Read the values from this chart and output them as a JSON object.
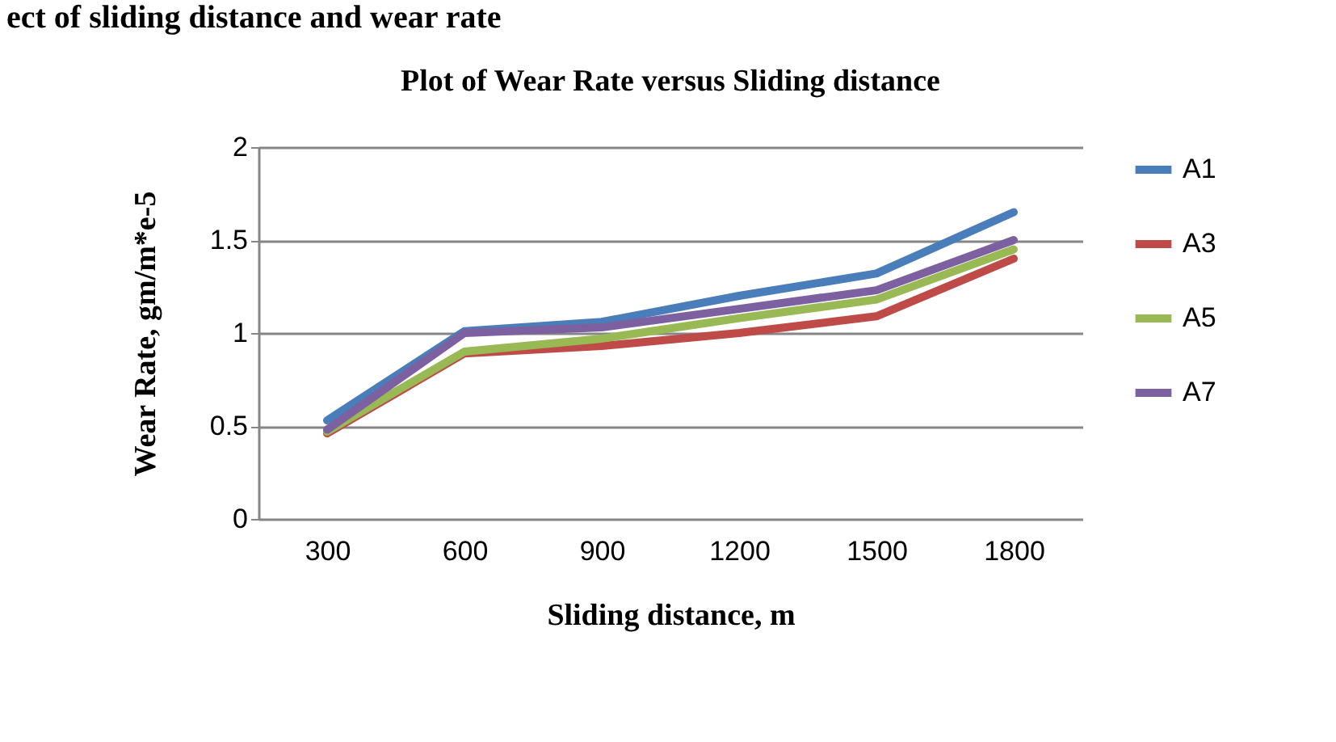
{
  "chart_data": {
    "type": "line",
    "title": "Plot of Wear Rate versus Sliding distance",
    "xlabel": "Sliding distance, m",
    "ylabel": "Wear Rate, gm/m*e-5",
    "annotations": [
      "ect of sliding distance and wear rate"
    ],
    "categories": [
      "300",
      "600",
      "900",
      "1200",
      "1500",
      "1800"
    ],
    "series": [
      {
        "name": "A1",
        "color": "#4a7ebb",
        "values": [
          0.53,
          1.01,
          1.06,
          1.2,
          1.32,
          1.65
        ]
      },
      {
        "name": "A3",
        "color": "#be4b48",
        "values": [
          0.46,
          0.89,
          0.93,
          1.0,
          1.09,
          1.4
        ]
      },
      {
        "name": "A5",
        "color": "#98b954",
        "values": [
          0.47,
          0.9,
          0.97,
          1.08,
          1.18,
          1.45
        ]
      },
      {
        "name": "A7",
        "color": "#7d60a0",
        "values": [
          0.48,
          1.0,
          1.03,
          1.13,
          1.23,
          1.5
        ]
      }
    ],
    "ylim": [
      0,
      2
    ],
    "yticks": [
      0,
      0.5,
      1,
      1.5,
      2
    ],
    "grid": "y",
    "legend": "right",
    "marker": "none",
    "line_style": "solid"
  }
}
